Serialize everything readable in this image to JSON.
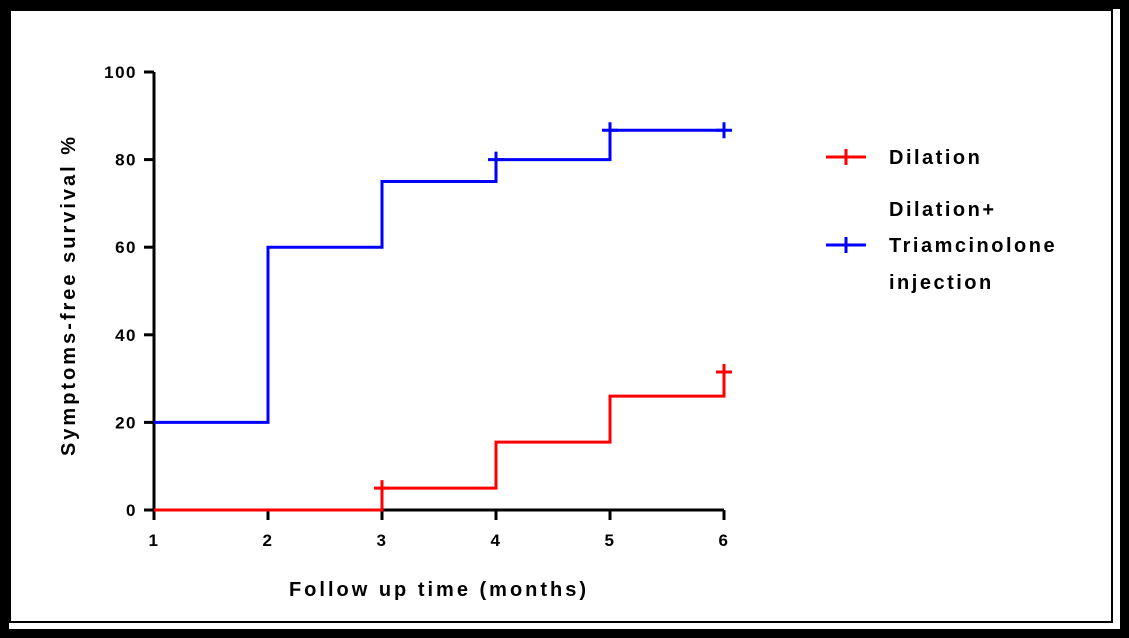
{
  "chart_data": {
    "type": "line",
    "title": "",
    "xlabel": "Follow up time (months)",
    "ylabel": "Symptoms-free survival %",
    "xlim": [
      1,
      6
    ],
    "ylim": [
      0,
      100
    ],
    "x_ticks": [
      "1",
      "2",
      "3",
      "4",
      "5",
      "6"
    ],
    "y_ticks": [
      "0",
      "20",
      "40",
      "60",
      "80",
      "100"
    ],
    "grid": false,
    "legend_placement": "right",
    "step": true,
    "series": [
      {
        "name": "Dilation",
        "color": "#ff0000",
        "x": [
          1,
          3,
          4,
          5,
          6
        ],
        "y": [
          0,
          5,
          15.5,
          26,
          31.5
        ],
        "censor_marks": [
          [
            3,
            5
          ],
          [
            6,
            31.5
          ]
        ]
      },
      {
        "name_lines": [
          "Dilation+",
          "Triamcinolone",
          "injection"
        ],
        "color": "#0000ff",
        "x": [
          1,
          2,
          3,
          4,
          5,
          6
        ],
        "y": [
          20,
          60,
          75,
          80,
          86.7,
          86.7
        ],
        "censor_marks": [
          [
            4,
            80
          ],
          [
            5,
            86.7
          ],
          [
            6,
            86.7
          ]
        ]
      }
    ]
  }
}
